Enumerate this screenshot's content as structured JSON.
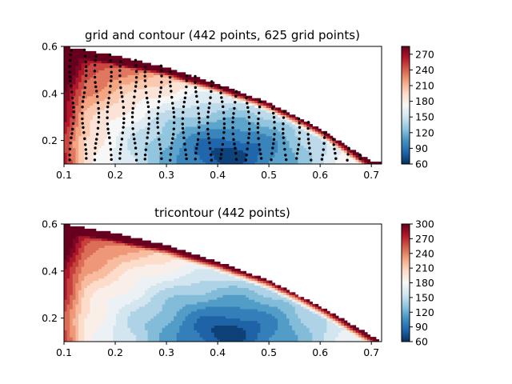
{
  "chart_data": [
    {
      "type": "contour",
      "title": "grid and contour (442 points, 625 grid points)",
      "xlabel": "",
      "ylabel": "",
      "xlim": [
        0.1,
        0.72
      ],
      "ylim": [
        0.1,
        0.6
      ],
      "x_ticks": [
        "0.1",
        "0.2",
        "0.3",
        "0.4",
        "0.5",
        "0.6",
        "0.7"
      ],
      "y_ticks": [
        "0.2",
        "0.4",
        "0.6"
      ],
      "colormap": "RdBu_r",
      "levels": [
        60,
        75,
        90,
        105,
        120,
        135,
        150,
        165,
        180,
        195,
        210,
        225,
        240,
        255,
        270,
        285
      ],
      "colorbar_ticks": [
        "60",
        "90",
        "120",
        "150",
        "180",
        "210",
        "240",
        "270"
      ],
      "colorbar_range": [
        60,
        285
      ],
      "field_minimum": {
        "x": 0.42,
        "y": 0.14,
        "value": 60
      },
      "domain_upper_boundary": [
        [
          0.1,
          0.6
        ],
        [
          0.2,
          0.56
        ],
        [
          0.3,
          0.51
        ],
        [
          0.4,
          0.44
        ],
        [
          0.5,
          0.36
        ],
        [
          0.6,
          0.25
        ],
        [
          0.7,
          0.11
        ]
      ],
      "scatter_points": "grid-sampled points (black dots) within domain",
      "show_points": true
    },
    {
      "type": "tricontour",
      "title": "tricontour (442 points)",
      "xlabel": "",
      "ylabel": "",
      "xlim": [
        0.1,
        0.72
      ],
      "ylim": [
        0.1,
        0.6
      ],
      "x_ticks": [
        "0.1",
        "0.2",
        "0.3",
        "0.4",
        "0.5",
        "0.6",
        "0.7"
      ],
      "y_ticks": [
        "0.2",
        "0.4",
        "0.6"
      ],
      "colormap": "RdBu_r",
      "levels": [
        60,
        75,
        90,
        105,
        120,
        135,
        150,
        165,
        180,
        195,
        210,
        225,
        240,
        255,
        270,
        285,
        300
      ],
      "colorbar_ticks": [
        "60",
        "90",
        "120",
        "150",
        "180",
        "210",
        "240",
        "270",
        "300"
      ],
      "colorbar_range": [
        60,
        300
      ],
      "field_minimum": {
        "x": 0.42,
        "y": 0.14,
        "value": 60
      },
      "domain_upper_boundary": [
        [
          0.1,
          0.6
        ],
        [
          0.2,
          0.56
        ],
        [
          0.3,
          0.51
        ],
        [
          0.4,
          0.44
        ],
        [
          0.5,
          0.36
        ],
        [
          0.6,
          0.25
        ],
        [
          0.72,
          0.1
        ]
      ],
      "show_points": false
    }
  ]
}
